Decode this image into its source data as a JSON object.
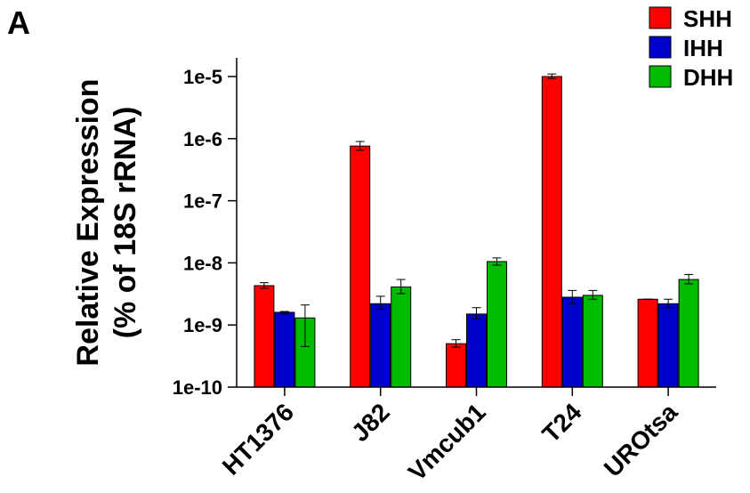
{
  "panel_label": "A",
  "chart_data": {
    "type": "bar",
    "scale": "log",
    "categories": [
      "HT1376",
      "J82",
      "Vmcub1",
      "T24",
      "UROtsa"
    ],
    "ylabel": [
      "Relative Expression",
      "(% of 18S rRNA)"
    ],
    "ylim": [
      1e-10,
      2e-05
    ],
    "yticks": [
      "1e-10",
      "1e-9",
      "1e-8",
      "1e-7",
      "1e-6",
      "1e-5"
    ],
    "legend": "top-right",
    "series": [
      {
        "name": "SHH",
        "color": "#ff0000",
        "values": [
          4.3e-09,
          7.6e-07,
          5e-10,
          1e-05,
          2.6e-09
        ],
        "err": [
          [
            3.9e-09,
            4.8e-09
          ],
          [
            6.5e-07,
            9e-07
          ],
          [
            4.4e-10,
            5.8e-10
          ],
          [
            9.3e-06,
            1.1e-05
          ],
          [
            2.6e-09,
            2.6e-09
          ]
        ]
      },
      {
        "name": "IHH",
        "color": "#0000cc",
        "values": [
          1.6e-09,
          2.2e-09,
          1.5e-09,
          2.8e-09,
          2.2e-09
        ],
        "err": [
          [
            1.5e-09,
            1.65e-09
          ],
          [
            1.8e-09,
            2.9e-09
          ],
          [
            1.25e-09,
            1.9e-09
          ],
          [
            2.2e-09,
            3.6e-09
          ],
          [
            1.9e-09,
            2.6e-09
          ]
        ]
      },
      {
        "name": "DHH",
        "color": "#00bb00",
        "values": [
          1.3e-09,
          4.1e-09,
          1.05e-08,
          3e-09,
          5.4e-09
        ],
        "err": [
          [
            4.5e-10,
            2.1e-09
          ],
          [
            3.2e-09,
            5.4e-09
          ],
          [
            9.2e-09,
            1.2e-08
          ],
          [
            2.6e-09,
            3.6e-09
          ],
          [
            4.6e-09,
            6.5e-09
          ]
        ]
      }
    ]
  }
}
